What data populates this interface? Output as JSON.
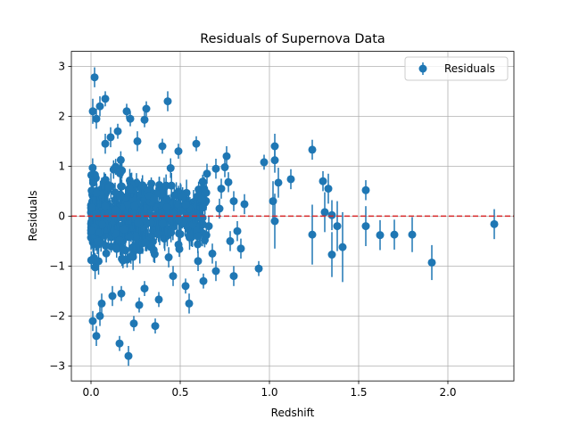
{
  "chart_data": {
    "type": "scatter",
    "title": "Residuals of Supernova Data",
    "xlabel": "Redshift",
    "ylabel": "Residuals",
    "xlim": [
      -0.11,
      2.37
    ],
    "ylim": [
      -3.3,
      3.3
    ],
    "xticks": [
      0.0,
      0.5,
      1.0,
      1.5,
      2.0
    ],
    "xtick_labels": [
      "0.0",
      "0.5",
      "1.0",
      "1.5",
      "2.0"
    ],
    "yticks": [
      -3,
      -2,
      -1,
      0,
      1,
      2,
      3
    ],
    "ytick_labels": [
      "−3",
      "−2",
      "−1",
      "0",
      "1",
      "2",
      "3"
    ],
    "grid": true,
    "legend": {
      "position": "top-right",
      "entries": [
        "Residuals"
      ]
    },
    "reference_line": {
      "y": 0,
      "color": "#d62728",
      "style": "dashed"
    },
    "series": [
      {
        "name": "Residuals",
        "color": "#1f77b4",
        "marker": "circle-with-errorbars",
        "points": [
          {
            "x": 0.02,
            "y": 2.78,
            "err": 0.2
          },
          {
            "x": 0.05,
            "y": 2.2,
            "err": 0.2
          },
          {
            "x": 0.08,
            "y": 2.35,
            "err": 0.15
          },
          {
            "x": 0.01,
            "y": 2.1,
            "err": 0.25
          },
          {
            "x": 0.03,
            "y": 1.95,
            "err": 0.2
          },
          {
            "x": 0.2,
            "y": 2.1,
            "err": 0.15
          },
          {
            "x": 0.22,
            "y": 1.95,
            "err": 0.15
          },
          {
            "x": 0.31,
            "y": 2.15,
            "err": 0.15
          },
          {
            "x": 0.3,
            "y": 1.93,
            "err": 0.15
          },
          {
            "x": 0.43,
            "y": 2.3,
            "err": 0.2
          },
          {
            "x": 0.15,
            "y": 1.7,
            "err": 0.15
          },
          {
            "x": 0.4,
            "y": 1.4,
            "err": 0.15
          },
          {
            "x": 0.49,
            "y": 1.3,
            "err": 0.15
          },
          {
            "x": 0.59,
            "y": 1.45,
            "err": 0.15
          },
          {
            "x": 0.76,
            "y": 1.2,
            "err": 0.2
          },
          {
            "x": 0.97,
            "y": 1.08,
            "err": 0.15
          },
          {
            "x": 1.03,
            "y": 1.4,
            "err": 0.25
          },
          {
            "x": 1.03,
            "y": 1.12,
            "err": 0.25
          },
          {
            "x": 1.24,
            "y": 1.33,
            "err": 0.2
          },
          {
            "x": 1.12,
            "y": 0.74,
            "err": 0.2
          },
          {
            "x": 1.05,
            "y": 0.67,
            "err": 0.3
          },
          {
            "x": 1.3,
            "y": 0.7,
            "err": 0.2
          },
          {
            "x": 1.33,
            "y": 0.55,
            "err": 0.3
          },
          {
            "x": 1.54,
            "y": 0.52,
            "err": 0.2
          },
          {
            "x": 1.02,
            "y": 0.3,
            "err": 0.4
          },
          {
            "x": 0.86,
            "y": 0.24,
            "err": 0.2
          },
          {
            "x": 1.31,
            "y": 0.08,
            "err": 0.4
          },
          {
            "x": 1.35,
            "y": 0.02,
            "err": 0.3
          },
          {
            "x": 1.03,
            "y": -0.1,
            "err": 0.55
          },
          {
            "x": 1.24,
            "y": -0.37,
            "err": 0.6
          },
          {
            "x": 1.38,
            "y": -0.2,
            "err": 0.5
          },
          {
            "x": 1.41,
            "y": -0.62,
            "err": 0.7
          },
          {
            "x": 1.35,
            "y": -0.77,
            "err": 0.45
          },
          {
            "x": 1.54,
            "y": -0.2,
            "err": 0.4
          },
          {
            "x": 1.62,
            "y": -0.38,
            "err": 0.3
          },
          {
            "x": 1.7,
            "y": -0.37,
            "err": 0.3
          },
          {
            "x": 1.8,
            "y": -0.37,
            "err": 0.35
          },
          {
            "x": 1.91,
            "y": -0.93,
            "err": 0.35
          },
          {
            "x": 2.26,
            "y": -0.16,
            "err": 0.3
          },
          {
            "x": 0.94,
            "y": -1.05,
            "err": 0.15
          },
          {
            "x": 0.84,
            "y": -0.65,
            "err": 0.2
          },
          {
            "x": 0.8,
            "y": -1.2,
            "err": 0.2
          },
          {
            "x": 0.7,
            "y": -1.1,
            "err": 0.2
          },
          {
            "x": 0.55,
            "y": -1.75,
            "err": 0.2
          },
          {
            "x": 0.53,
            "y": -1.4,
            "err": 0.15
          },
          {
            "x": 0.38,
            "y": -1.67,
            "err": 0.15
          },
          {
            "x": 0.36,
            "y": -2.2,
            "err": 0.15
          },
          {
            "x": 0.21,
            "y": -2.8,
            "err": 0.2
          },
          {
            "x": 0.16,
            "y": -2.55,
            "err": 0.15
          },
          {
            "x": 0.24,
            "y": -2.15,
            "err": 0.15
          },
          {
            "x": 0.03,
            "y": -2.4,
            "err": 0.2
          },
          {
            "x": 0.01,
            "y": -2.1,
            "err": 0.2
          },
          {
            "x": 0.05,
            "y": -2.0,
            "err": 0.2
          },
          {
            "x": 0.17,
            "y": -1.55,
            "err": 0.15
          },
          {
            "x": 0.63,
            "y": -1.3,
            "err": 0.15
          },
          {
            "x": 0.46,
            "y": -1.2,
            "err": 0.2
          },
          {
            "x": 0.3,
            "y": -1.45,
            "err": 0.15
          },
          {
            "x": 0.12,
            "y": -1.6,
            "err": 0.2
          },
          {
            "x": 0.27,
            "y": -1.78,
            "err": 0.15
          },
          {
            "x": 0.06,
            "y": -1.75,
            "err": 0.2
          },
          {
            "x": 0.11,
            "y": 1.58,
            "err": 0.2
          },
          {
            "x": 0.26,
            "y": 1.5,
            "err": 0.2
          },
          {
            "x": 0.08,
            "y": 1.45,
            "err": 0.2
          },
          {
            "x": 0.7,
            "y": 0.95,
            "err": 0.2
          },
          {
            "x": 0.75,
            "y": 0.98,
            "err": 0.2
          },
          {
            "x": 0.73,
            "y": 0.55,
            "err": 0.2
          },
          {
            "x": 0.77,
            "y": 0.68,
            "err": 0.2
          },
          {
            "x": 0.65,
            "y": 0.85,
            "err": 0.2
          },
          {
            "x": 0.8,
            "y": 0.3,
            "err": 0.2
          },
          {
            "x": 0.82,
            "y": -0.3,
            "err": 0.2
          },
          {
            "x": 0.78,
            "y": -0.5,
            "err": 0.2
          },
          {
            "x": 0.68,
            "y": -0.75,
            "err": 0.2
          },
          {
            "x": 0.6,
            "y": -0.9,
            "err": 0.2
          },
          {
            "x": 0.72,
            "y": 0.15,
            "err": 0.2
          },
          {
            "x": 0.66,
            "y": -0.2,
            "err": 0.2
          }
        ]
      }
    ],
    "dense_cluster": {
      "note_x_range": [
        0.0,
        0.65
      ],
      "count": 520
    }
  }
}
